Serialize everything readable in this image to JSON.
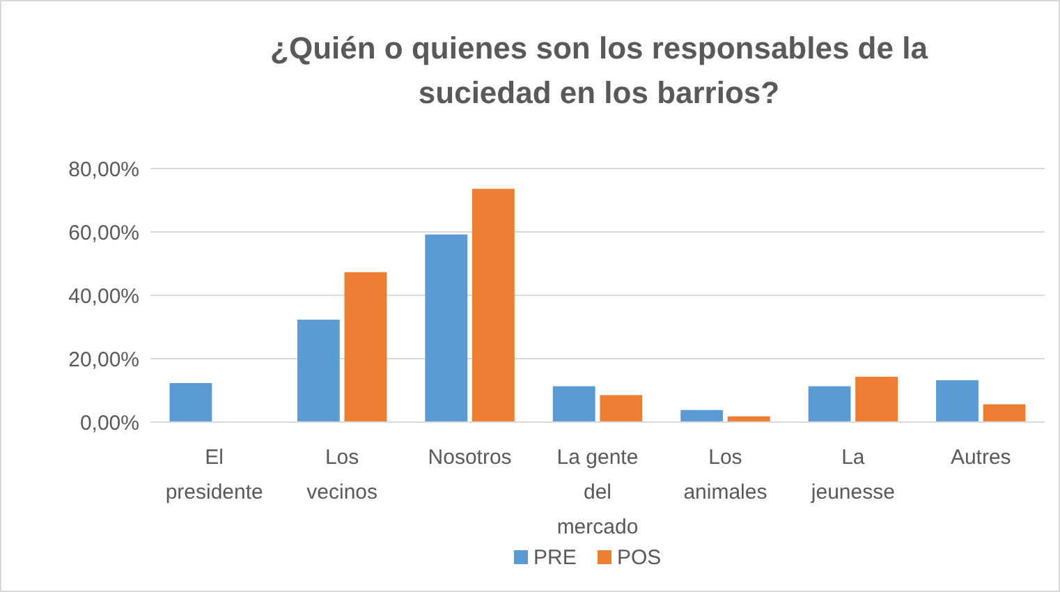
{
  "chart_data": {
    "type": "bar",
    "title": "¿Quién o quienes son los responsables de la suciedad en los barrios?",
    "categories": [
      "El presidente",
      "Los vecinos",
      "Nosotros",
      "La gente del mercado",
      "Los animales",
      "La jeunesse",
      "Autres"
    ],
    "series": [
      {
        "name": "PRE",
        "color": "#5b9bd5",
        "values": [
          12.3,
          32.3,
          59.2,
          11.3,
          3.8,
          11.3,
          13.2
        ]
      },
      {
        "name": "POS",
        "color": "#ed7d31",
        "values": [
          0,
          47.3,
          73.6,
          8.5,
          1.8,
          14.3,
          5.6
        ]
      }
    ],
    "ylim": [
      0,
      80
    ],
    "yticks": [
      {
        "value": 0,
        "label": "0,00%"
      },
      {
        "value": 20,
        "label": "20,00%"
      },
      {
        "value": 40,
        "label": "40,00%"
      },
      {
        "value": 60,
        "label": "60,00%"
      },
      {
        "value": 80,
        "label": "80,00%"
      }
    ],
    "grid": "y",
    "legend": "bottom"
  }
}
